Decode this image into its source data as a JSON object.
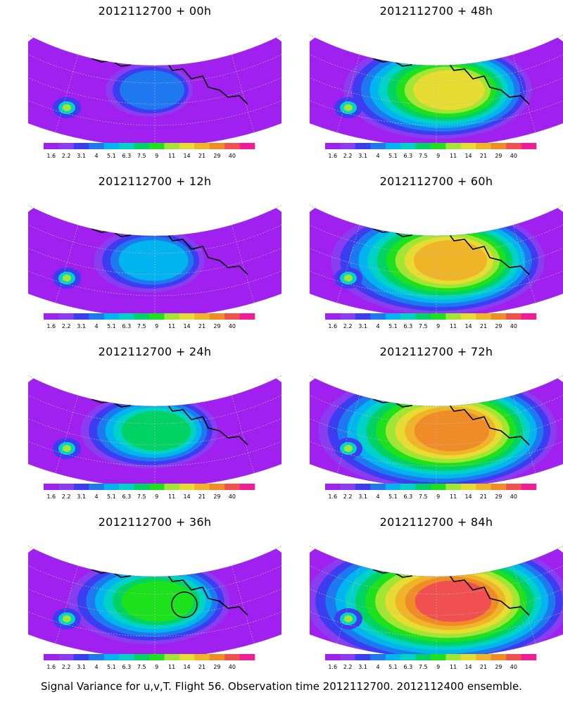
{
  "panels": [
    {
      "title": "2012112700 + 00h",
      "level": 0
    },
    {
      "title": "2012112700 + 48h",
      "level": 4
    },
    {
      "title": "2012112700 + 12h",
      "level": 1
    },
    {
      "title": "2012112700 + 60h",
      "level": 5
    },
    {
      "title": "2012112700 + 24h",
      "level": 2
    },
    {
      "title": "2012112700 + 72h",
      "level": 6
    },
    {
      "title": "2012112700 + 36h",
      "level": 3,
      "circle": true
    },
    {
      "title": "2012112700 + 84h",
      "level": 7
    }
  ],
  "colorbar": {
    "labels": [
      "1.6",
      "2.2",
      "3.1",
      "4",
      "5.1",
      "6.3",
      "7.5",
      "9",
      "11",
      "14",
      "21",
      "29",
      "40"
    ],
    "colors": [
      "#a020f0",
      "#8a3cf0",
      "#3c3cf0",
      "#1e78f0",
      "#00b4f0",
      "#00d2c8",
      "#00d264",
      "#1ee11e",
      "#a0e632",
      "#e6dc32",
      "#f0b428",
      "#f08c28",
      "#f05050",
      "#f01e96"
    ]
  },
  "footer": "Signal Variance for u,v,T. Flight 56. Observation time 2012112700. 2012112400 ensemble."
}
